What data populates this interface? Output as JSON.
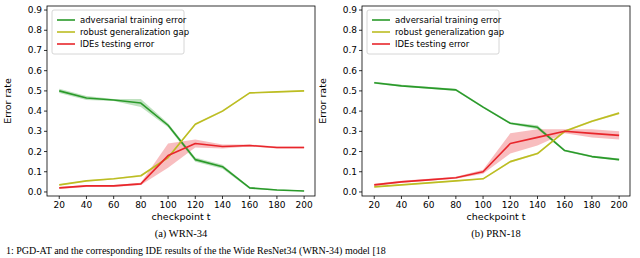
{
  "chart_data": [
    {
      "type": "line",
      "title": "(a) WRN-34",
      "x_label": "checkpoint t",
      "y_label": "Error rate",
      "x": [
        20,
        40,
        60,
        80,
        100,
        120,
        140,
        160,
        180,
        200
      ],
      "xlim": [
        11,
        208
      ],
      "xticks": [
        20,
        40,
        60,
        80,
        100,
        120,
        140,
        160,
        180,
        200
      ],
      "ylim": [
        -0.02,
        0.92
      ],
      "yticks": [
        {
          "value": 0,
          "label": "0.0"
        },
        0.1,
        0.2,
        0.3,
        0.4,
        0.5,
        0.6,
        0.7,
        0.8,
        0.9
      ],
      "legend": "upper-left",
      "grid": false,
      "series": [
        {
          "name": "adversarial training error",
          "color": "#2a9a2a",
          "values": [
            0.5,
            0.465,
            0.455,
            0.44,
            0.33,
            0.16,
            0.125,
            0.02,
            0.01,
            0.005
          ],
          "error": [
            0.01,
            0.01,
            0.005,
            0.02,
            0.01,
            0.01,
            0.01,
            0.005,
            0.003,
            0.002
          ]
        },
        {
          "name": "robust generalization gap",
          "color": "#bcbd22",
          "values": [
            0.035,
            0.055,
            0.065,
            0.08,
            0.17,
            0.335,
            0.4,
            0.49,
            0.495,
            0.5
          ],
          "error": [
            0.003,
            0.003,
            0.003,
            0.005,
            0.005,
            0.005,
            0.005,
            0.003,
            0.003,
            0.003
          ]
        },
        {
          "name": "IDEs testing error",
          "color": "#e8262b",
          "values": [
            0.02,
            0.03,
            0.03,
            0.04,
            0.18,
            0.24,
            0.225,
            0.23,
            0.22,
            0.22
          ],
          "error": [
            0.005,
            0.005,
            0.005,
            0.005,
            0.06,
            0.02,
            0.01,
            0.005,
            0.005,
            0.005
          ]
        }
      ]
    },
    {
      "type": "line",
      "title": "(b) PRN-18",
      "x_label": "checkpoint t",
      "y_label": "Error rate",
      "x": [
        20,
        40,
        60,
        80,
        100,
        120,
        140,
        160,
        180,
        200
      ],
      "xlim": [
        11,
        208
      ],
      "xticks": [
        20,
        40,
        60,
        80,
        100,
        120,
        140,
        160,
        180,
        200
      ],
      "ylim": [
        -0.02,
        0.92
      ],
      "yticks": [
        {
          "value": 0,
          "label": "0.0"
        },
        0.1,
        0.2,
        0.3,
        0.4,
        0.5,
        0.6,
        0.7,
        0.8,
        0.9
      ],
      "legend": "upper-left",
      "grid": false,
      "series": [
        {
          "name": "adversarial training error",
          "color": "#2a9a2a",
          "values": [
            0.54,
            0.525,
            0.515,
            0.505,
            0.42,
            0.34,
            0.32,
            0.205,
            0.175,
            0.16
          ],
          "error": [
            0.005,
            0.005,
            0.005,
            0.005,
            0.005,
            0.005,
            0.01,
            0.005,
            0.005,
            0.005
          ]
        },
        {
          "name": "robust generalization gap",
          "color": "#bcbd22",
          "values": [
            0.025,
            0.035,
            0.045,
            0.055,
            0.065,
            0.15,
            0.19,
            0.3,
            0.35,
            0.39
          ],
          "error": [
            0.003,
            0.003,
            0.003,
            0.003,
            0.003,
            0.005,
            0.005,
            0.005,
            0.005,
            0.005
          ]
        },
        {
          "name": "IDEs testing error",
          "color": "#e8262b",
          "values": [
            0.035,
            0.05,
            0.06,
            0.07,
            0.1,
            0.24,
            0.27,
            0.3,
            0.29,
            0.28
          ],
          "error": [
            0.005,
            0.005,
            0.005,
            0.005,
            0.01,
            0.05,
            0.04,
            0.01,
            0.02,
            0.02
          ]
        }
      ]
    }
  ],
  "caption": "1: PGD-AT and the corresponding IDE results of the the Wide ResNet34 (WRN-34) model [18"
}
